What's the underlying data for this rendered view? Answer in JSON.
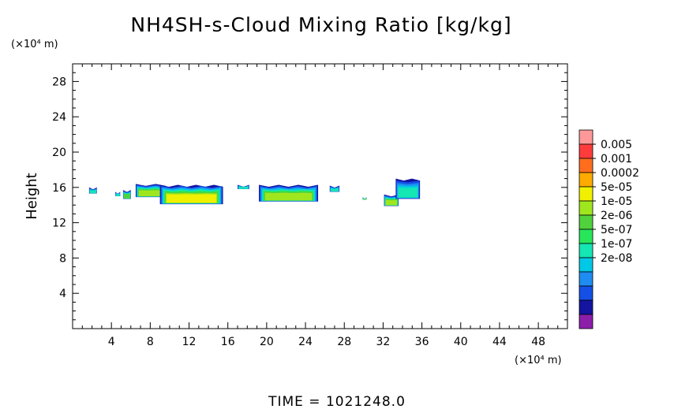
{
  "chart_data": {
    "type": "heatmap",
    "title": "NH4SH-s-Cloud Mixing Ratio [kg/kg]",
    "ylabel": "Height",
    "x_unit_label": "(×10⁴ m)",
    "y_unit_label": "(×10⁴ m)",
    "time_label": "TIME  =  1021248.0",
    "xlim": [
      0,
      51
    ],
    "ylim": [
      0,
      30
    ],
    "x_ticks": [
      4,
      8,
      12,
      16,
      20,
      24,
      28,
      32,
      36,
      40,
      44,
      48
    ],
    "y_ticks": [
      4,
      8,
      12,
      16,
      20,
      24,
      28
    ],
    "colorbar": {
      "labels": [
        "0.005",
        "0.001",
        "0.0002",
        "5e-05",
        "1e-05",
        "2e-06",
        "5e-07",
        "1e-07",
        "2e-08"
      ],
      "colors": [
        "#ff9999",
        "#ff3c3c",
        "#ff6e1e",
        "#ffaa00",
        "#f0f000",
        "#a0e61e",
        "#50d23c",
        "#28e65a",
        "#14e6b4",
        "#00c8e6",
        "#1e8cf0",
        "#1450e6",
        "#1414a0",
        "#8c1eaa"
      ]
    },
    "cloud_regions": [
      {
        "x0": 1.7,
        "x1": 2.5,
        "y0": 15.3,
        "y1": 16.0,
        "peak": "1e-07"
      },
      {
        "x0": 4.4,
        "x1": 4.9,
        "y0": 15.0,
        "y1": 15.5,
        "peak": "1e-07"
      },
      {
        "x0": 5.2,
        "x1": 6.0,
        "y0": 14.7,
        "y1": 15.7,
        "peak": "2e-06"
      },
      {
        "x0": 6.5,
        "x1": 9.6,
        "y0": 14.9,
        "y1": 16.4,
        "peak": "1e-05"
      },
      {
        "x0": 9.0,
        "x1": 15.5,
        "y0": 14.1,
        "y1": 16.3,
        "peak": "5e-05"
      },
      {
        "x0": 17.0,
        "x1": 18.2,
        "y0": 15.8,
        "y1": 16.3,
        "peak": "1e-07"
      },
      {
        "x0": 19.2,
        "x1": 25.3,
        "y0": 14.4,
        "y1": 16.3,
        "peak": "1e-05"
      },
      {
        "x0": 26.5,
        "x1": 27.5,
        "y0": 15.5,
        "y1": 16.2,
        "peak": "1e-07"
      },
      {
        "x0": 29.9,
        "x1": 30.3,
        "y0": 14.6,
        "y1": 14.9,
        "peak": "2e-06"
      },
      {
        "x0": 32.1,
        "x1": 33.6,
        "y0": 13.9,
        "y1": 15.2,
        "peak": "1e-05"
      },
      {
        "x0": 33.3,
        "x1": 35.8,
        "y0": 14.7,
        "y1": 17.0,
        "peak": "1e-07"
      }
    ],
    "grid": false,
    "legend": "right"
  }
}
